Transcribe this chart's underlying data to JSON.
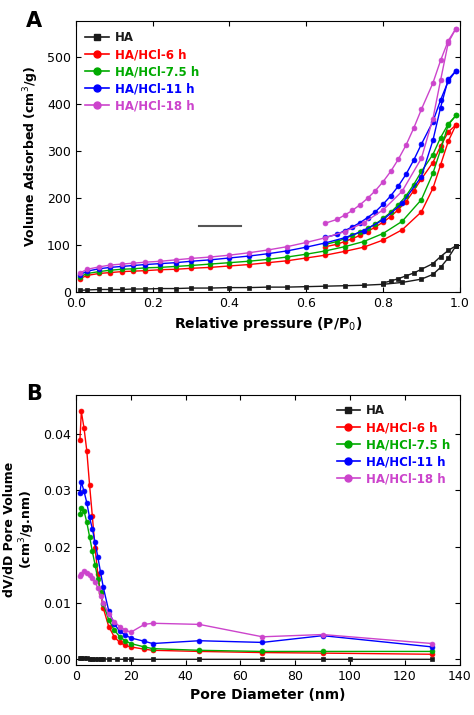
{
  "panel_A": {
    "xlabel": "Relative pressure (P/P$_0$)",
    "ylabel": "Volume Adsorbed (cm$^3$/g)",
    "ylim": [
      0,
      575
    ],
    "xlim": [
      0.0,
      1.0
    ],
    "yticks": [
      0,
      100,
      200,
      300,
      400,
      500
    ],
    "xticks": [
      0.0,
      0.2,
      0.4,
      0.6,
      0.8,
      1.0
    ],
    "series": [
      {
        "label": "HA",
        "color": "#1a1a1a",
        "label_color": "#1a1a1a",
        "marker": "s",
        "adsorption_x": [
          0.01,
          0.03,
          0.06,
          0.09,
          0.12,
          0.15,
          0.18,
          0.22,
          0.26,
          0.3,
          0.35,
          0.4,
          0.45,
          0.5,
          0.55,
          0.6,
          0.65,
          0.7,
          0.75,
          0.8,
          0.85,
          0.9,
          0.93,
          0.95,
          0.97,
          0.99
        ],
        "adsorption_y": [
          3,
          4,
          5,
          5,
          5,
          6,
          6,
          7,
          7,
          8,
          8,
          9,
          9,
          10,
          10,
          11,
          12,
          13,
          14,
          16,
          20,
          27,
          37,
          52,
          72,
          98
        ],
        "desorption_x": [
          0.99,
          0.97,
          0.95,
          0.93,
          0.9,
          0.88,
          0.86,
          0.84,
          0.82,
          0.8
        ],
        "desorption_y": [
          98,
          88,
          75,
          60,
          48,
          40,
          34,
          28,
          23,
          19
        ]
      },
      {
        "label": "HA/HCl-6 h",
        "color": "#ff0000",
        "label_color": "#ff0000",
        "marker": "o",
        "adsorption_x": [
          0.01,
          0.03,
          0.06,
          0.09,
          0.12,
          0.15,
          0.18,
          0.22,
          0.26,
          0.3,
          0.35,
          0.4,
          0.45,
          0.5,
          0.55,
          0.6,
          0.65,
          0.7,
          0.75,
          0.8,
          0.85,
          0.9,
          0.93,
          0.95,
          0.97,
          0.99
        ],
        "adsorption_y": [
          28,
          35,
          39,
          41,
          43,
          44,
          45,
          47,
          48,
          50,
          52,
          55,
          58,
          62,
          66,
          72,
          78,
          86,
          95,
          110,
          132,
          170,
          220,
          270,
          320,
          355
        ],
        "desorption_x": [
          0.99,
          0.97,
          0.95,
          0.93,
          0.9,
          0.88,
          0.86,
          0.84,
          0.82,
          0.8,
          0.78,
          0.76,
          0.74,
          0.72,
          0.7,
          0.68,
          0.65
        ],
        "desorption_y": [
          355,
          340,
          310,
          275,
          240,
          215,
          192,
          175,
          160,
          148,
          138,
          128,
          120,
          113,
          107,
          101,
          96
        ]
      },
      {
        "label": "HA/HCl-7.5 h",
        "color": "#00aa00",
        "label_color": "#00aa00",
        "marker": "o",
        "adsorption_x": [
          0.01,
          0.03,
          0.06,
          0.09,
          0.12,
          0.15,
          0.18,
          0.22,
          0.26,
          0.3,
          0.35,
          0.4,
          0.45,
          0.5,
          0.55,
          0.6,
          0.65,
          0.7,
          0.75,
          0.8,
          0.85,
          0.9,
          0.93,
          0.95,
          0.97,
          0.99
        ],
        "adsorption_y": [
          32,
          39,
          43,
          46,
          48,
          49,
          51,
          52,
          54,
          56,
          59,
          62,
          65,
          69,
          74,
          80,
          87,
          96,
          107,
          124,
          150,
          196,
          252,
          302,
          355,
          375
        ],
        "desorption_x": [
          0.99,
          0.97,
          0.95,
          0.93,
          0.9,
          0.88,
          0.86,
          0.84,
          0.82,
          0.8,
          0.78,
          0.76,
          0.74,
          0.72,
          0.7,
          0.68,
          0.65
        ],
        "desorption_y": [
          375,
          357,
          328,
          292,
          256,
          228,
          204,
          185,
          169,
          156,
          144,
          135,
          127,
          120,
          113,
          107,
          101
        ]
      },
      {
        "label": "HA/HCl-11 h",
        "color": "#0000ff",
        "label_color": "#0000ff",
        "marker": "o",
        "adsorption_x": [
          0.01,
          0.03,
          0.06,
          0.09,
          0.12,
          0.15,
          0.18,
          0.22,
          0.26,
          0.3,
          0.35,
          0.4,
          0.45,
          0.5,
          0.55,
          0.6,
          0.65,
          0.7,
          0.75,
          0.8,
          0.85,
          0.9,
          0.93,
          0.95,
          0.97,
          0.99
        ],
        "adsorption_y": [
          36,
          44,
          49,
          52,
          54,
          56,
          58,
          60,
          62,
          65,
          68,
          72,
          76,
          81,
          87,
          95,
          104,
          115,
          130,
          153,
          188,
          245,
          322,
          392,
          452,
          470
        ],
        "desorption_x": [
          0.99,
          0.97,
          0.95,
          0.93,
          0.9,
          0.88,
          0.86,
          0.84,
          0.82,
          0.8,
          0.78,
          0.76,
          0.74,
          0.72,
          0.7,
          0.68,
          0.65
        ],
        "desorption_y": [
          470,
          448,
          408,
          362,
          314,
          280,
          250,
          225,
          204,
          186,
          170,
          158,
          147,
          138,
          130,
          122,
          116
        ]
      },
      {
        "label": "HA/HCl-18 h",
        "color": "#cc44cc",
        "label_color": "#cc44cc",
        "marker": "o",
        "adsorption_x": [
          0.01,
          0.03,
          0.06,
          0.09,
          0.12,
          0.15,
          0.18,
          0.22,
          0.26,
          0.3,
          0.35,
          0.4,
          0.45,
          0.5,
          0.55,
          0.6,
          0.65,
          0.7,
          0.75,
          0.8,
          0.85,
          0.9,
          0.93,
          0.95,
          0.97,
          0.99
        ],
        "adsorption_y": [
          40,
          48,
          53,
          57,
          59,
          61,
          63,
          65,
          68,
          71,
          74,
          78,
          83,
          89,
          96,
          105,
          115,
          128,
          147,
          174,
          214,
          284,
          368,
          450,
          530,
          560
        ],
        "desorption_x": [
          0.99,
          0.97,
          0.95,
          0.93,
          0.9,
          0.88,
          0.86,
          0.84,
          0.82,
          0.8,
          0.78,
          0.76,
          0.74,
          0.72,
          0.7,
          0.68,
          0.65
        ],
        "desorption_y": [
          560,
          534,
          492,
          444,
          388,
          348,
          312,
          282,
          256,
          234,
          215,
          199,
          185,
          173,
          163,
          154,
          146
        ]
      }
    ]
  },
  "panel_B": {
    "xlabel": "Pore Diameter (nm)",
    "ylabel": "dV/dD Pore Volume\n(cm$^3$/g.nm)",
    "ylim": [
      -0.001,
      0.047
    ],
    "xlim": [
      0,
      140
    ],
    "yticks": [
      0.0,
      0.01,
      0.02,
      0.03,
      0.04
    ],
    "xticks": [
      0,
      20,
      40,
      60,
      80,
      100,
      120,
      140
    ],
    "series": [
      {
        "label": "HA",
        "color": "#1a1a1a",
        "marker": "s",
        "x": [
          1.5,
          2,
          3,
          4,
          5,
          6,
          7,
          8,
          9,
          10,
          12,
          15,
          18,
          20,
          28,
          45,
          68,
          90,
          100,
          130
        ],
        "y": [
          0.0003,
          0.0003,
          0.0002,
          0.0002,
          0.0001,
          0.0001,
          0.0001,
          0.0001,
          0.0001,
          0.0001,
          0.0,
          0.0,
          0.0,
          0.0,
          0.0,
          0.0,
          0.0,
          0.0,
          0.0,
          0.0
        ]
      },
      {
        "label": "HA/HCl-6 h",
        "color": "#ff0000",
        "marker": "o",
        "x": [
          1.5,
          2,
          3,
          4,
          5,
          6,
          7,
          8,
          9,
          10,
          12,
          14,
          16,
          18,
          20,
          25,
          28,
          45,
          68,
          90,
          130
        ],
        "y": [
          0.039,
          0.044,
          0.041,
          0.037,
          0.031,
          0.0255,
          0.0198,
          0.0152,
          0.0118,
          0.0091,
          0.0058,
          0.004,
          0.003,
          0.0025,
          0.0022,
          0.0018,
          0.0016,
          0.0014,
          0.0012,
          0.0011,
          0.0009
        ]
      },
      {
        "label": "HA/HCl-7.5 h",
        "color": "#00aa00",
        "marker": "o",
        "x": [
          1.5,
          2,
          3,
          4,
          5,
          6,
          7,
          8,
          9,
          10,
          12,
          14,
          16,
          18,
          20,
          25,
          28,
          45,
          68,
          90,
          130
        ],
        "y": [
          0.0258,
          0.0268,
          0.0263,
          0.0243,
          0.0218,
          0.0192,
          0.0168,
          0.0143,
          0.012,
          0.0098,
          0.007,
          0.0052,
          0.004,
          0.0033,
          0.0028,
          0.0022,
          0.0019,
          0.0016,
          0.0014,
          0.0014,
          0.0014
        ]
      },
      {
        "label": "HA/HCl-11 h",
        "color": "#0000ff",
        "marker": "o",
        "x": [
          1.5,
          2,
          3,
          4,
          5,
          6,
          7,
          8,
          9,
          10,
          12,
          14,
          16,
          18,
          20,
          25,
          28,
          45,
          68,
          90,
          130
        ],
        "y": [
          0.0295,
          0.0315,
          0.0298,
          0.0278,
          0.0252,
          0.0232,
          0.0208,
          0.0182,
          0.0155,
          0.0128,
          0.0086,
          0.0063,
          0.005,
          0.0043,
          0.0038,
          0.0032,
          0.0028,
          0.0033,
          0.003,
          0.0042,
          0.0022
        ]
      },
      {
        "label": "HA/HCl-18 h",
        "color": "#cc44cc",
        "marker": "o",
        "x": [
          1.5,
          2,
          3,
          4,
          5,
          6,
          7,
          8,
          9,
          10,
          12,
          14,
          16,
          18,
          20,
          25,
          28,
          45,
          68,
          90,
          130
        ],
        "y": [
          0.0148,
          0.0152,
          0.0157,
          0.0153,
          0.015,
          0.0145,
          0.0137,
          0.0127,
          0.0113,
          0.01,
          0.008,
          0.0067,
          0.0058,
          0.0052,
          0.0048,
          0.0062,
          0.0064,
          0.0062,
          0.004,
          0.0044,
          0.0028
        ]
      }
    ]
  }
}
